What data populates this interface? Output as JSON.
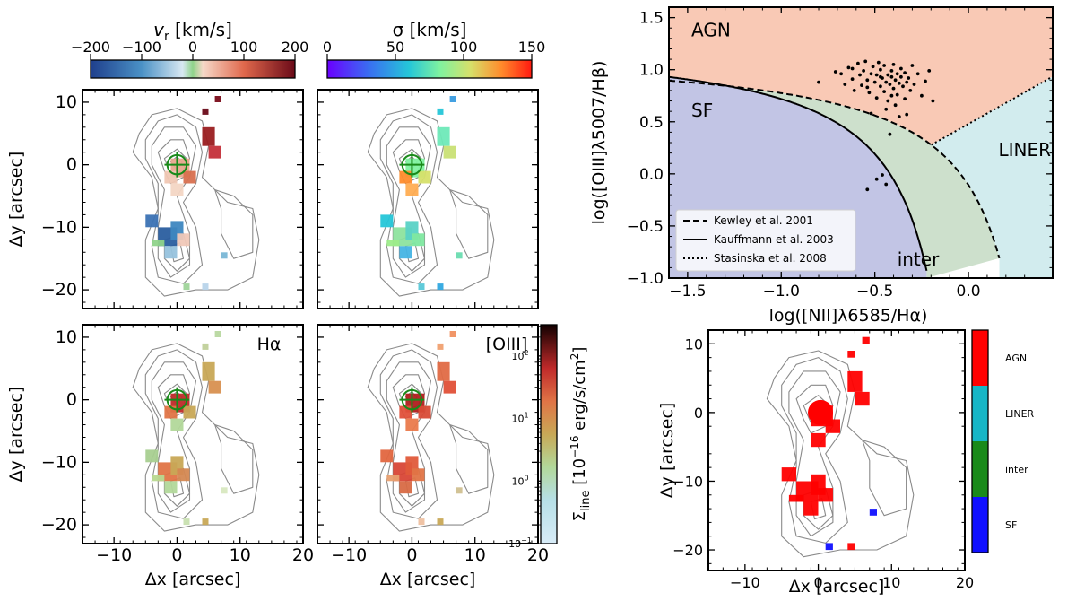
{
  "colorbars": {
    "velocity": {
      "title": "v",
      "title_sub": "r",
      "title_unit": " [km/s]",
      "ticks": [
        "−200",
        "−100",
        "0",
        "100",
        "200"
      ],
      "range": [
        -200,
        200
      ]
    },
    "dispersion": {
      "title": "σ [km/s]",
      "ticks": [
        "0",
        "50",
        "100",
        "150"
      ],
      "range": [
        0,
        150
      ]
    },
    "flux": {
      "label": "Σ",
      "label_sub": "line",
      "label_unit": " [10",
      "label_exp": "−16",
      "label_unit2": " erg/s/cm",
      "label_exp2": "2",
      "label_end": "]",
      "ticks": [
        "10",
        "10",
        "10",
        "10",
        "10"
      ],
      "tick_exps": [
        "−1",
        "0",
        "1",
        "2",
        ""
      ],
      "range_log": [
        -1,
        2.5
      ]
    },
    "classes": {
      "labels": [
        "AGN",
        "LINER",
        "inter",
        "SF"
      ],
      "colors": [
        "#ff0000",
        "#16b6c6",
        "#1a8a1a",
        "#1010ff"
      ]
    }
  },
  "maps": {
    "xlabel": "Δx [arcsec]",
    "ylabel": "Δy [arcsec]",
    "xticks": [
      "−10",
      "0",
      "10",
      "20"
    ],
    "xtick_values": [
      -10,
      0,
      10,
      20
    ],
    "yticks": [
      "10",
      "0",
      "−10",
      "−20"
    ],
    "ytick_values": [
      10,
      0,
      -10,
      -20
    ],
    "xlim": [
      -15,
      20
    ],
    "ylim": [
      -23,
      12
    ],
    "panel_labels": {
      "halpha": "Hα",
      "oiii": "[OIII]"
    }
  },
  "chart_data": {
    "type": "scatter",
    "title": "",
    "xlabel": "log([NII]λ6585/Hα)",
    "ylabel": "log([OIII]λ5007/Hβ)",
    "xlim": [
      -1.6,
      0.45
    ],
    "ylim": [
      -1.0,
      1.6
    ],
    "xticks": [
      "−1.5",
      "−1.0",
      "−0.5",
      "0.0"
    ],
    "xtick_values": [
      -1.5,
      -1.0,
      -0.5,
      0.0
    ],
    "yticks": [
      "1.5",
      "1.0",
      "0.5",
      "0.0",
      "−0.5",
      "−1.0"
    ],
    "ytick_values": [
      1.5,
      1.0,
      0.5,
      0.0,
      -0.5,
      -1.0
    ],
    "regions": {
      "AGN": "AGN",
      "SF": "SF",
      "LINER": "LINER",
      "inter": "inter"
    },
    "region_colors": {
      "AGN": "#f9c9b5",
      "SF": "#c2c5e5",
      "inter": "#cde0cc",
      "LINER": "#d2ecee"
    },
    "region_text_colors": {
      "AGN": "#ff0000",
      "SF": "#0000ff",
      "inter": "#008000",
      "LINER": "#16b6c6"
    },
    "legend": [
      {
        "label": "Kewley et al. 2001",
        "style": "dashed"
      },
      {
        "label": "Kauffmann et al. 2003",
        "style": "solid"
      },
      {
        "label": "Stasinska et al. 2008",
        "style": "dotted"
      }
    ],
    "points": [
      [
        -0.8,
        0.88
      ],
      [
        -0.71,
        0.98
      ],
      [
        -0.68,
        0.96
      ],
      [
        -0.66,
        0.86
      ],
      [
        -0.64,
        1.02
      ],
      [
        -0.62,
        0.91
      ],
      [
        -0.61,
        0.8
      ],
      [
        -0.59,
        1.06
      ],
      [
        -0.58,
        0.95
      ],
      [
        -0.57,
        0.85
      ],
      [
        -0.56,
        0.99
      ],
      [
        -0.55,
        1.08
      ],
      [
        -0.54,
        0.9
      ],
      [
        -0.53,
        0.78
      ],
      [
        -0.52,
        0.96
      ],
      [
        -0.51,
        1.03
      ],
      [
        -0.5,
        0.88
      ],
      [
        -0.49,
        0.73
      ],
      [
        -0.49,
        0.95
      ],
      [
        -0.48,
        1.07
      ],
      [
        -0.47,
        0.84
      ],
      [
        -0.47,
        1.0
      ],
      [
        -0.46,
        0.92
      ],
      [
        -0.45,
        0.79
      ],
      [
        -0.45,
        1.04
      ],
      [
        -0.44,
        0.88
      ],
      [
        -0.43,
        0.95
      ],
      [
        -0.43,
        0.7
      ],
      [
        -0.42,
        0.86
      ],
      [
        -0.41,
        0.99
      ],
      [
        -0.41,
        0.93
      ],
      [
        -0.4,
        0.82
      ],
      [
        -0.4,
        1.05
      ],
      [
        -0.39,
        0.9
      ],
      [
        -0.38,
        0.96
      ],
      [
        -0.38,
        0.76
      ],
      [
        -0.37,
        0.87
      ],
      [
        -0.36,
        1.01
      ],
      [
        -0.36,
        0.93
      ],
      [
        -0.35,
        0.84
      ],
      [
        -0.34,
        0.97
      ],
      [
        -0.34,
        0.72
      ],
      [
        -0.33,
        0.88
      ],
      [
        -0.32,
        0.92
      ],
      [
        -0.31,
        0.8
      ],
      [
        -0.3,
        1.04
      ],
      [
        -0.29,
        0.86
      ],
      [
        -0.27,
        0.96
      ],
      [
        -0.25,
        0.75
      ],
      [
        -0.23,
        0.89
      ],
      [
        -0.21,
        0.99
      ],
      [
        -0.19,
        0.7
      ],
      [
        -0.62,
        1.01
      ],
      [
        -0.54,
        0.83
      ],
      [
        -0.47,
        0.93
      ],
      [
        -0.44,
        0.62
      ],
      [
        -0.41,
        0.75
      ],
      [
        -0.39,
        0.66
      ],
      [
        -0.37,
        0.55
      ],
      [
        -0.42,
        0.38
      ],
      [
        -0.52,
        0.58
      ],
      [
        -0.33,
        0.57
      ],
      [
        -0.46,
        -0.01
      ],
      [
        -0.49,
        -0.05
      ],
      [
        -0.44,
        -0.1
      ],
      [
        -0.54,
        -0.15
      ]
    ]
  }
}
